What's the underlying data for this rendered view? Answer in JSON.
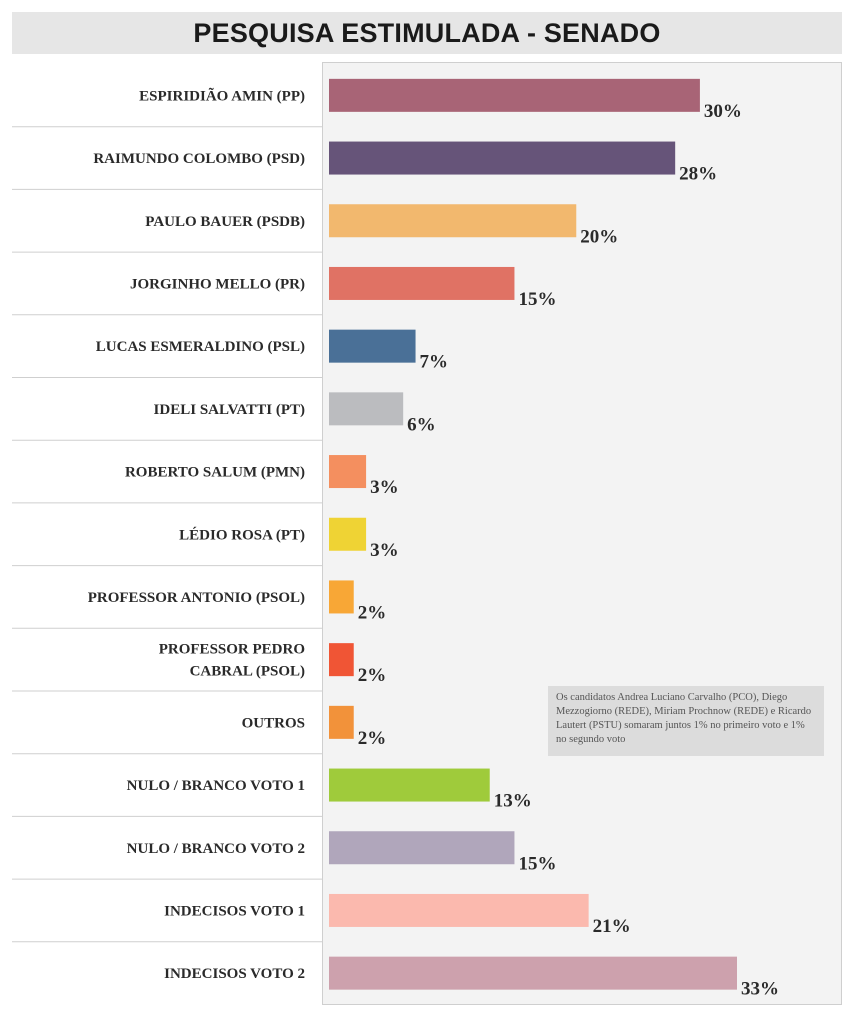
{
  "chart_data": {
    "type": "bar",
    "orientation": "horizontal",
    "title": "PESQUISA ESTIMULADA - SENADO",
    "categories": [
      [
        "ESPIRIDIÃO AMIN (PP)"
      ],
      [
        "RAIMUNDO COLOMBO (PSD)"
      ],
      [
        "PAULO BAUER (PSDB)"
      ],
      [
        "JORGINHO MELLO (PR)"
      ],
      [
        "LUCAS ESMERALDINO (PSL)"
      ],
      [
        "IDELI SALVATTI (PT)"
      ],
      [
        "ROBERTO SALUM (PMN)"
      ],
      [
        "LÉDIO ROSA (PT)"
      ],
      [
        "PROFESSOR ANTONIO (PSOL)"
      ],
      [
        "PROFESSOR PEDRO",
        "CABRAL (PSOL)"
      ],
      [
        "OUTROS"
      ],
      [
        "NULO / BRANCO VOTO 1"
      ],
      [
        "NULO / BRANCO VOTO 2"
      ],
      [
        "INDECISOS VOTO 1"
      ],
      [
        "INDECISOS VOTO 2"
      ]
    ],
    "values": [
      30,
      28,
      20,
      15,
      7,
      6,
      3,
      3,
      2,
      2,
      2,
      13,
      15,
      21,
      33
    ],
    "value_labels": [
      "30%",
      "28%",
      "20%",
      "15%",
      "7%",
      "6%",
      "3%",
      "3%",
      "2%",
      "2%",
      "2%",
      "13%",
      "15%",
      "21%",
      "33%"
    ],
    "colors": [
      "#a86476",
      "#665479",
      "#f2b86e",
      "#e07264",
      "#4a7097",
      "#bbbcbf",
      "#f48f5f",
      "#efd334",
      "#f8a736",
      "#f05535",
      "#f2923a",
      "#9fcb3b",
      "#b0a6bb",
      "#fbb9ae",
      "#cda1ad"
    ],
    "xlim": [
      0,
      33
    ],
    "grid": false,
    "legend": "none"
  },
  "note": "Os candidatos Andrea Luciano Carvalho (PCO), Diego Mezzogiorno (REDE), Miriam Prochnow (REDE) e Ricardo Lautert (PSTU) somaram juntos 1% no primeiro voto e 1% no segundo voto"
}
